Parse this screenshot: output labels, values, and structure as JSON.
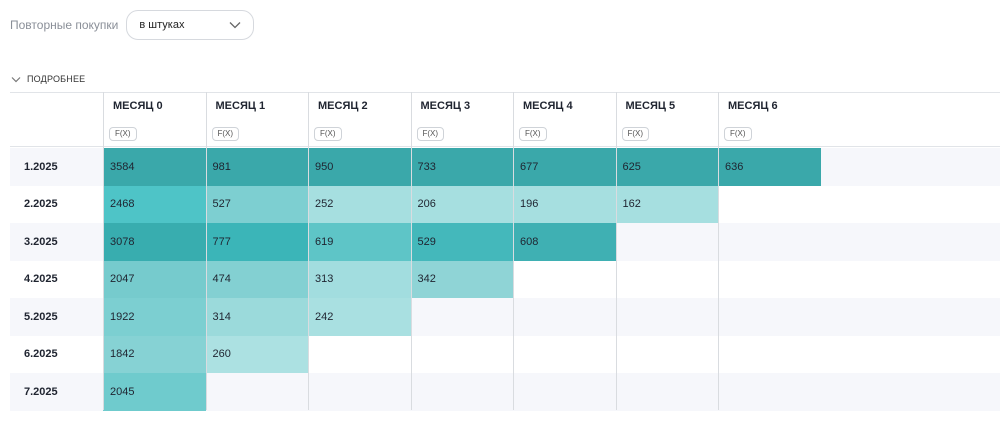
{
  "filter": {
    "label": "Повторные покупки",
    "select_value": "в штуках"
  },
  "details_label": "ПОДРОБНЕЕ",
  "fx_label": "F(X)",
  "columns": [
    "МЕСЯЦ 0",
    "МЕСЯЦ 1",
    "МЕСЯЦ 2",
    "МЕСЯЦ 3",
    "МЕСЯЦ 4",
    "МЕСЯЦ 5",
    "МЕСЯЦ 6"
  ],
  "rows": [
    {
      "label": "1.2025",
      "cells": [
        {
          "value": "3584",
          "color": "#3aa8aa"
        },
        {
          "value": "981",
          "color": "#3aa8aa"
        },
        {
          "value": "950",
          "color": "#3aa8aa"
        },
        {
          "value": "733",
          "color": "#3aa8aa"
        },
        {
          "value": "677",
          "color": "#3aa8aa"
        },
        {
          "value": "625",
          "color": "#3aa8aa"
        },
        {
          "value": "636",
          "color": "#3aa8aa"
        }
      ]
    },
    {
      "label": "2.2025",
      "cells": [
        {
          "value": "2468",
          "color": "#4ec4c7"
        },
        {
          "value": "527",
          "color": "#7dcfd1"
        },
        {
          "value": "252",
          "color": "#a6dfe0"
        },
        {
          "value": "206",
          "color": "#a6dfe0"
        },
        {
          "value": "196",
          "color": "#a6dfe0"
        },
        {
          "value": "162",
          "color": "#a6dfe0"
        }
      ]
    },
    {
      "label": "3.2025",
      "cells": [
        {
          "value": "3078",
          "color": "#38adaf"
        },
        {
          "value": "777",
          "color": "#3bb5b8"
        },
        {
          "value": "619",
          "color": "#5ec5c7"
        },
        {
          "value": "529",
          "color": "#44b8bb"
        },
        {
          "value": "608",
          "color": "#3fb0b3"
        }
      ]
    },
    {
      "label": "4.2025",
      "cells": [
        {
          "value": "2047",
          "color": "#76cbcd"
        },
        {
          "value": "474",
          "color": "#83d0d2"
        },
        {
          "value": "313",
          "color": "#a2dddf"
        },
        {
          "value": "342",
          "color": "#8fd4d6"
        }
      ]
    },
    {
      "label": "5.2025",
      "cells": [
        {
          "value": "1922",
          "color": "#7ccfd1"
        },
        {
          "value": "314",
          "color": "#9bdadb"
        },
        {
          "value": "242",
          "color": "#a9e0e1"
        }
      ]
    },
    {
      "label": "6.2025",
      "cells": [
        {
          "value": "1842",
          "color": "#86d2d4"
        },
        {
          "value": "260",
          "color": "#ace1e2"
        }
      ]
    },
    {
      "label": "7.2025",
      "cells": [
        {
          "value": "2045",
          "color": "#6fcbcd"
        }
      ]
    }
  ]
}
